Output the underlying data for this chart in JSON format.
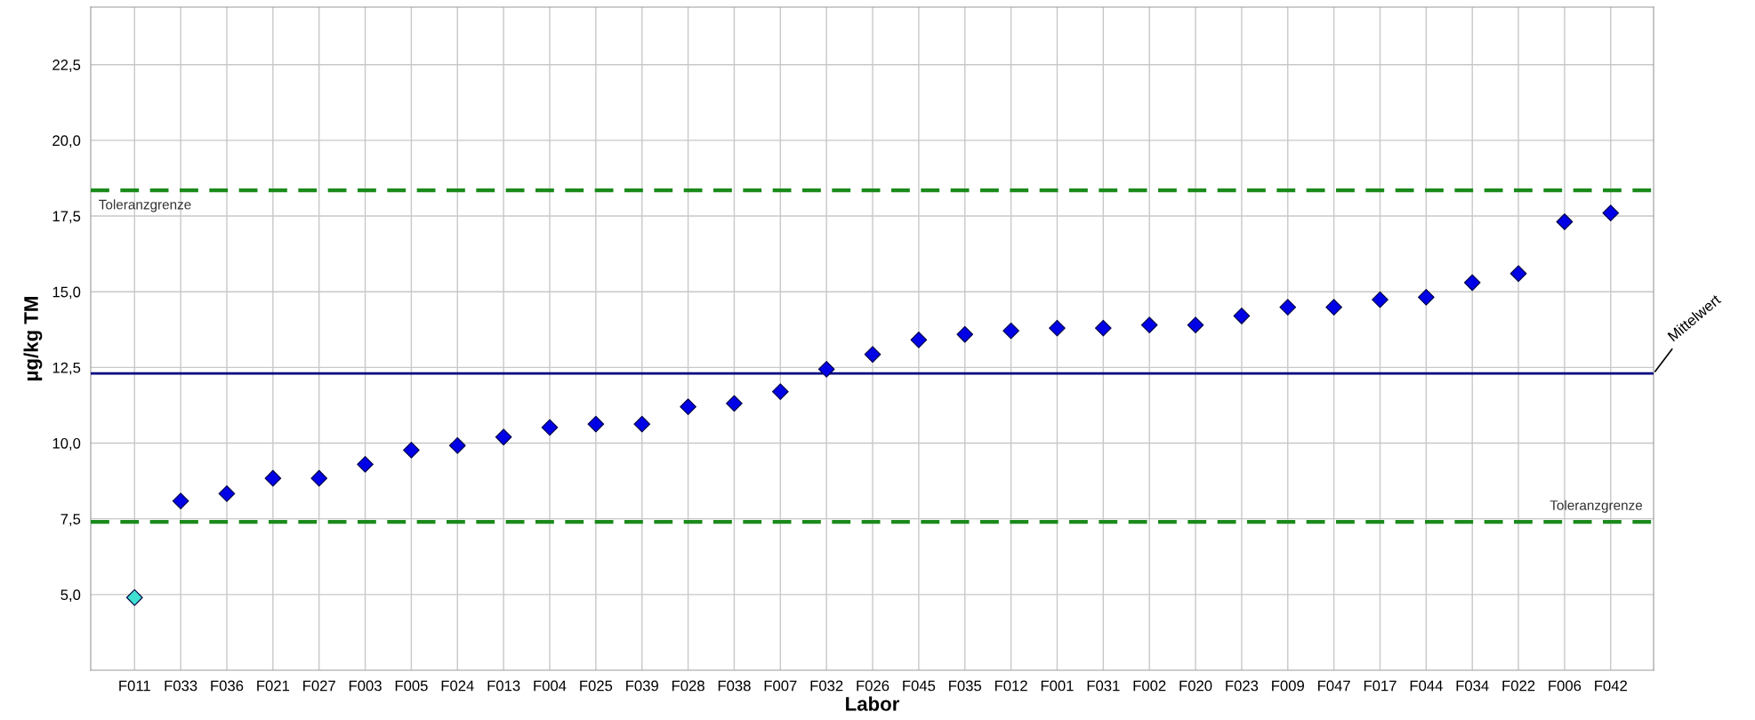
{
  "chart_data": {
    "type": "scatter",
    "xlabel": "Labor",
    "ylabel": "µg/kg TM",
    "categories": [
      "F011",
      "F033",
      "F036",
      "F021",
      "F027",
      "F003",
      "F005",
      "F024",
      "F013",
      "F004",
      "F025",
      "F039",
      "F028",
      "F038",
      "F007",
      "F032",
      "F026",
      "F045",
      "F035",
      "F012",
      "F001",
      "F031",
      "F002",
      "F020",
      "F023",
      "F009",
      "F047",
      "F017",
      "F044",
      "F034",
      "F022",
      "F006",
      "F042"
    ],
    "series": [
      {
        "values": [
          4.9,
          8.09,
          8.33,
          8.84,
          8.84,
          9.3,
          9.77,
          9.92,
          10.2,
          10.52,
          10.63,
          10.63,
          11.2,
          11.31,
          11.7,
          12.44,
          12.93,
          13.41,
          13.59,
          13.71,
          13.8,
          13.8,
          13.9,
          13.9,
          14.2,
          14.49,
          14.49,
          14.74,
          14.82,
          15.3,
          15.6,
          17.31,
          17.6
        ],
        "colors": [
          "#40e0d0",
          "#0000e6",
          "#0000e6",
          "#0000e6",
          "#0000e6",
          "#0000e6",
          "#0000e6",
          "#0000e6",
          "#0000e6",
          "#0000e6",
          "#0000e6",
          "#0000e6",
          "#0000e6",
          "#0000e6",
          "#0000e6",
          "#0000e6",
          "#0000e6",
          "#0000e6",
          "#0000e6",
          "#0000e6",
          "#0000e6",
          "#0000e6",
          "#0000e6",
          "#0000e6",
          "#0000e6",
          "#0000e6",
          "#0000e6",
          "#0000e6",
          "#0000e6",
          "#0000e6",
          "#0000e6",
          "#0000e6",
          "#0000e6"
        ]
      }
    ],
    "marker": "diamond",
    "ylim": [
      2.5,
      24.4
    ],
    "yticks": [
      {
        "value": 5,
        "label": "5,0"
      },
      {
        "value": 7.5,
        "label": "7,5"
      },
      {
        "value": 10,
        "label": "10,0"
      },
      {
        "value": 12.5,
        "label": "12,5"
      },
      {
        "value": 15,
        "label": "15,0"
      },
      {
        "value": 17.5,
        "label": "17,5"
      },
      {
        "value": 20,
        "label": "20,0"
      },
      {
        "value": 22.5,
        "label": "22,5"
      }
    ],
    "grid": true,
    "ref_lines": [
      {
        "axis": "y",
        "value": 12.3,
        "label": "Mittelwert",
        "color": "#000080",
        "line_style": "solid"
      },
      {
        "axis": "y",
        "value": 18.35,
        "label": "Toleranzgrenze",
        "color": "#1a8a1a",
        "line_style": "dashed"
      },
      {
        "axis": "y",
        "value": 7.4,
        "label": "Toleranzgrenze",
        "color": "#1a8a1a",
        "line_style": "dashed"
      }
    ]
  }
}
